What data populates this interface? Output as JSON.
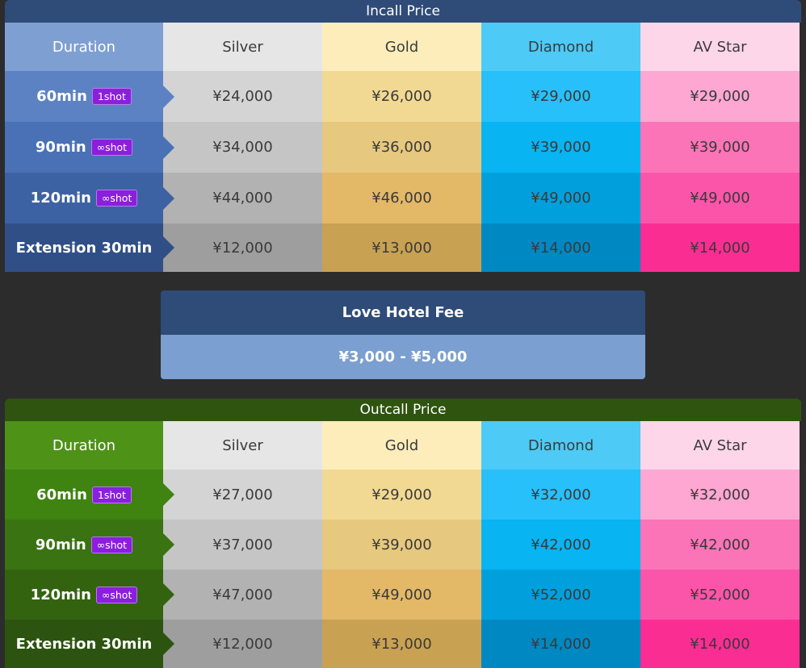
{
  "incall": {
    "title": "Incall Price",
    "headers": [
      "Duration",
      "Silver",
      "Gold",
      "Diamond",
      "AV Star"
    ],
    "rows": [
      {
        "duration": "60min",
        "badge": "1shot",
        "prices": [
          "¥24,000",
          "¥26,000",
          "¥29,000",
          "¥29,000"
        ]
      },
      {
        "duration": "90min",
        "badge": "∞shot",
        "prices": [
          "¥34,000",
          "¥36,000",
          "¥39,000",
          "¥39,000"
        ]
      },
      {
        "duration": "120min",
        "badge": "∞shot",
        "prices": [
          "¥44,000",
          "¥46,000",
          "¥49,000",
          "¥49,000"
        ]
      },
      {
        "duration": "Extension 30min",
        "badge": "",
        "prices": [
          "¥12,000",
          "¥13,000",
          "¥14,000",
          "¥14,000"
        ]
      }
    ]
  },
  "hotel": {
    "title": "Love Hotel Fee",
    "value": "¥3,000 - ¥5,000"
  },
  "outcall": {
    "title": "Outcall Price",
    "headers": [
      "Duration",
      "Silver",
      "Gold",
      "Diamond",
      "AV Star"
    ],
    "rows": [
      {
        "duration": "60min",
        "badge": "1shot",
        "prices": [
          "¥27,000",
          "¥29,000",
          "¥32,000",
          "¥32,000"
        ]
      },
      {
        "duration": "90min",
        "badge": "∞shot",
        "prices": [
          "¥37,000",
          "¥39,000",
          "¥42,000",
          "¥42,000"
        ]
      },
      {
        "duration": "120min",
        "badge": "∞shot",
        "prices": [
          "¥47,000",
          "¥49,000",
          "¥52,000",
          "¥52,000"
        ]
      },
      {
        "duration": "Extension 30min",
        "badge": "",
        "prices": [
          "¥12,000",
          "¥13,000",
          "¥14,000",
          "¥14,000"
        ]
      }
    ]
  },
  "colors": {
    "badge": "#8a1fdc",
    "incall_header": "#2f4b78",
    "outcall_header": "#2f5410"
  }
}
